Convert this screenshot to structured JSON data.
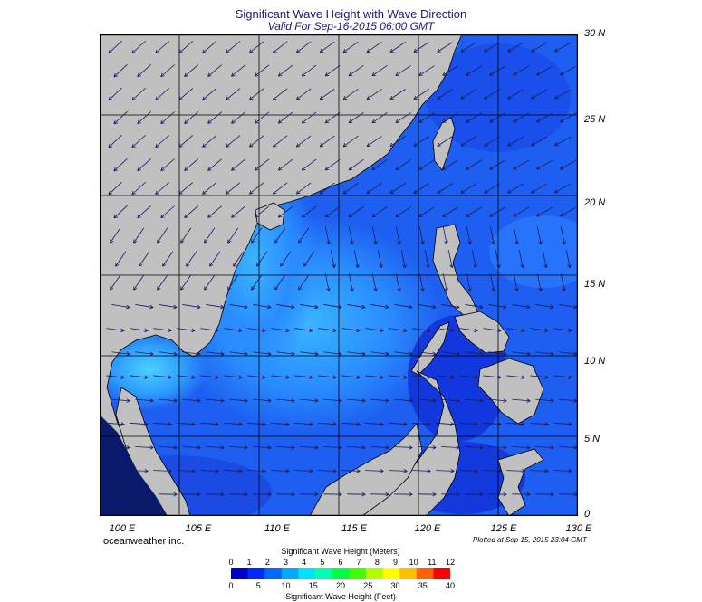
{
  "title": "Significant Wave Height with Wave Direction",
  "subtitle": "Valid For Sep-16-2015 06:00 GMT",
  "credit": "oceanweather inc.",
  "plotted": "Plotted at Sep 15, 2015 23:04 GMT",
  "latitude_labels": [
    "30 N",
    "25 N",
    "20 N",
    "15 N",
    "10 N",
    "5 N",
    "0"
  ],
  "longitude_labels": [
    "100 E",
    "105 E",
    "110 E",
    "115 E",
    "120 E",
    "125 E",
    "130 E"
  ],
  "colorbar": {
    "meters_title": "Significant Wave Height (Meters)",
    "feet_title": "Significant Wave Height (Feet)",
    "meters_ticks": [
      "0",
      "1",
      "2",
      "3",
      "4",
      "5",
      "6",
      "7",
      "8",
      "9",
      "10",
      "11",
      "12"
    ],
    "feet_ticks": [
      "0",
      "5",
      "10",
      "15",
      "20",
      "25",
      "30",
      "35",
      "40"
    ],
    "colors": [
      "#0000c8",
      "#0028ff",
      "#0068ff",
      "#00a8ff",
      "#00e0ff",
      "#00ffb0",
      "#00ff40",
      "#40ff00",
      "#b0ff00",
      "#ffff00",
      "#ffc000",
      "#ff6000",
      "#ff0000"
    ]
  },
  "map_colors": {
    "land": "#c0c0c0",
    "ocean_low": "#1e5ef0",
    "ocean_mid": "#2e8cff",
    "ocean_high": "#40c4ff",
    "ocean_dark": "#1030d8",
    "arrow": "#1a1a5a",
    "grid": "#000000"
  }
}
